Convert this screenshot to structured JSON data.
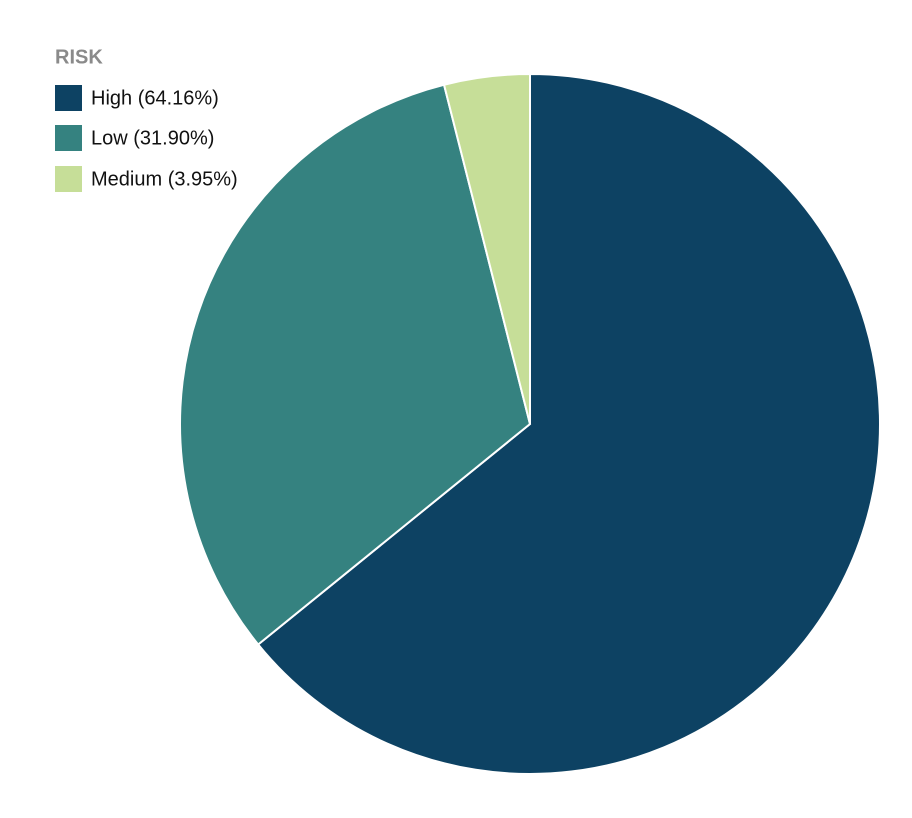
{
  "chart_data": {
    "type": "pie",
    "legend_title": "RISK",
    "categories": [
      "High (64.16%)",
      "Low (31.90%)",
      "Medium (3.95%)"
    ],
    "values": [
      64.16,
      31.9,
      3.95
    ],
    "colors": [
      "#0d4263",
      "#358280",
      "#c6de98"
    ],
    "legend": "top-left"
  }
}
